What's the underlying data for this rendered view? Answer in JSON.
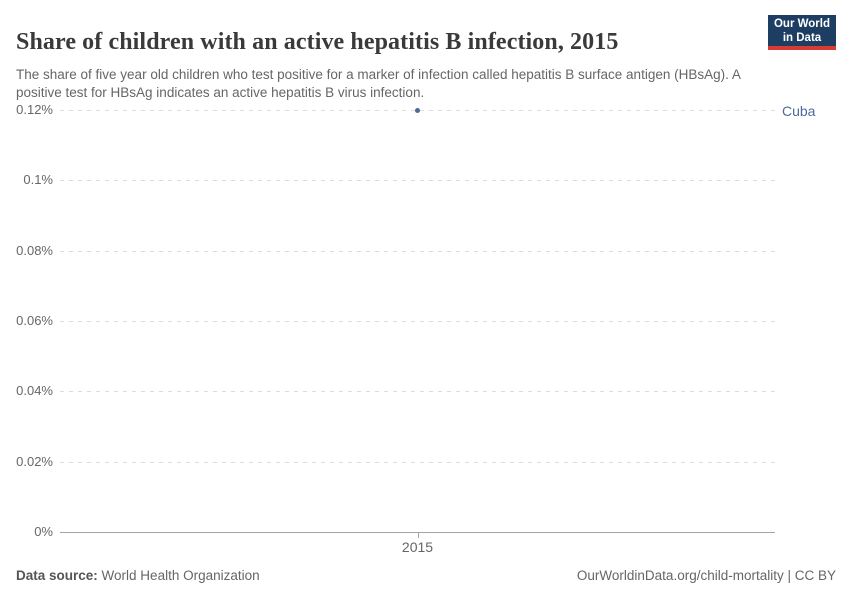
{
  "header": {
    "title": "Share of children with an active hepatitis B infection, 2015",
    "subtitle": "The share of five year old children who test positive for a marker of infection called hepatitis B surface antigen (HBsAg). A positive test for HBsAg indicates an active hepatitis B virus infection.",
    "logo": {
      "line1": "Our World",
      "line2": "in Data",
      "bg_color": "#1d3d63",
      "stripe_color": "#d73c32"
    }
  },
  "chart_data": {
    "type": "scatter",
    "title": "Share of children with an active hepatitis B infection, 2015",
    "series": [
      {
        "name": "Cuba",
        "color": "#4C6A9C",
        "x": [
          2015
        ],
        "values": [
          0.12
        ]
      }
    ],
    "x_ticks": [
      "2015"
    ],
    "y_ticks": [
      {
        "label": "0%",
        "value": 0
      },
      {
        "label": "0.02%",
        "value": 0.02
      },
      {
        "label": "0.04%",
        "value": 0.04
      },
      {
        "label": "0.06%",
        "value": 0.06
      },
      {
        "label": "0.08%",
        "value": 0.08
      },
      {
        "label": "0.1%",
        "value": 0.1
      },
      {
        "label": "0.12%",
        "value": 0.12
      }
    ],
    "ylim": [
      0,
      0.12
    ],
    "xlabel": "",
    "ylabel": "",
    "unit": "%",
    "grid": "horizontal-dashed",
    "legend_position": "right-of-plot"
  },
  "footer": {
    "source_label": "Data source:",
    "source_value": "World Health Organization",
    "credit": "OurWorldinData.org/child-mortality | CC BY"
  }
}
